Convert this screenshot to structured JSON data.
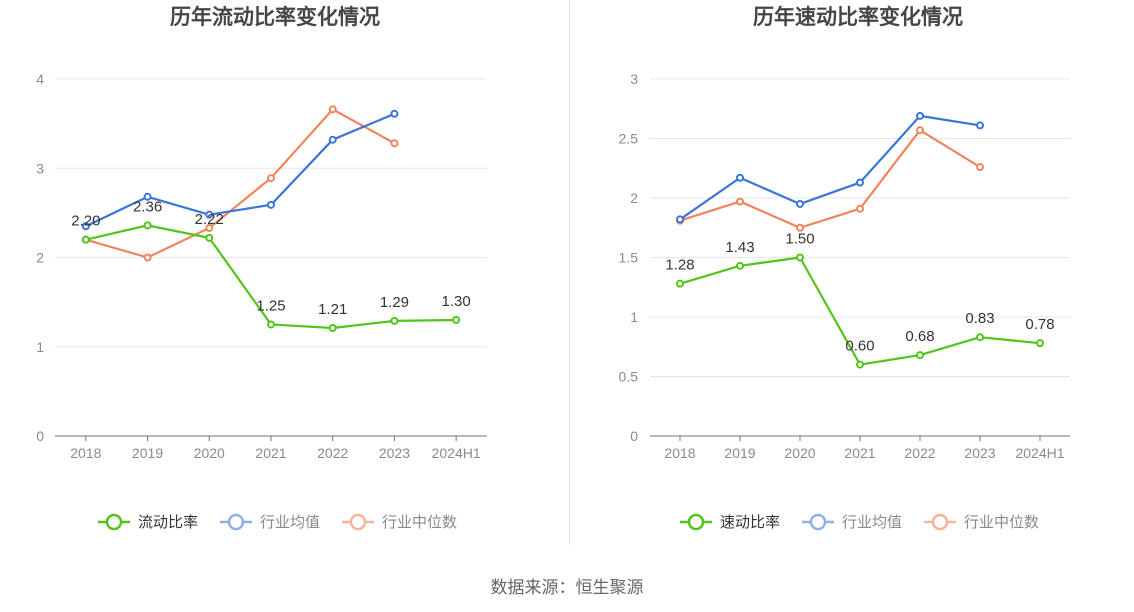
{
  "colors": {
    "company": "#52c41a",
    "industry_avg": "#3a76d8",
    "industry_median": "#f0845a",
    "legend_avg": "#8fb0ec",
    "legend_median": "#f6b29a"
  },
  "source_text": "数据来源：恒生聚源",
  "chart_data": [
    {
      "type": "line",
      "title": "历年流动比率变化情况",
      "categories": [
        "2018",
        "2019",
        "2020",
        "2021",
        "2022",
        "2023",
        "2024H1"
      ],
      "ylim": [
        0,
        4
      ],
      "yticks": [
        "0",
        "1",
        "2",
        "3",
        "4"
      ],
      "grid": true,
      "legend_position": "bottom",
      "series": [
        {
          "name": "流动比率",
          "values": [
            2.2,
            2.36,
            2.22,
            1.25,
            1.21,
            1.29,
            1.3
          ],
          "labels": [
            "2.20",
            "2.36",
            "2.22",
            "1.25",
            "1.21",
            "1.29",
            "1.30"
          ]
        },
        {
          "name": "行业均值",
          "values": [
            2.35,
            2.68,
            2.48,
            2.59,
            3.32,
            3.61,
            null
          ]
        },
        {
          "name": "行业中位数",
          "values": [
            2.2,
            2.0,
            2.33,
            2.89,
            3.66,
            3.28,
            null
          ]
        }
      ]
    },
    {
      "type": "line",
      "title": "历年速动比率变化情况",
      "categories": [
        "2018",
        "2019",
        "2020",
        "2021",
        "2022",
        "2023",
        "2024H1"
      ],
      "ylim": [
        0,
        3
      ],
      "yticks": [
        "0",
        "0.5",
        "1",
        "1.5",
        "2",
        "2.5",
        "3"
      ],
      "grid": true,
      "legend_position": "bottom",
      "series": [
        {
          "name": "速动比率",
          "values": [
            1.28,
            1.43,
            1.5,
            0.6,
            0.68,
            0.83,
            0.78
          ],
          "labels": [
            "1.28",
            "1.43",
            "1.50",
            "0.60",
            "0.68",
            "0.83",
            "0.78"
          ]
        },
        {
          "name": "行业均值",
          "values": [
            1.82,
            2.17,
            1.95,
            2.13,
            2.69,
            2.61,
            null
          ]
        },
        {
          "name": "行业中位数",
          "values": [
            1.81,
            1.97,
            1.75,
            1.91,
            2.57,
            2.26,
            null
          ]
        }
      ]
    }
  ]
}
